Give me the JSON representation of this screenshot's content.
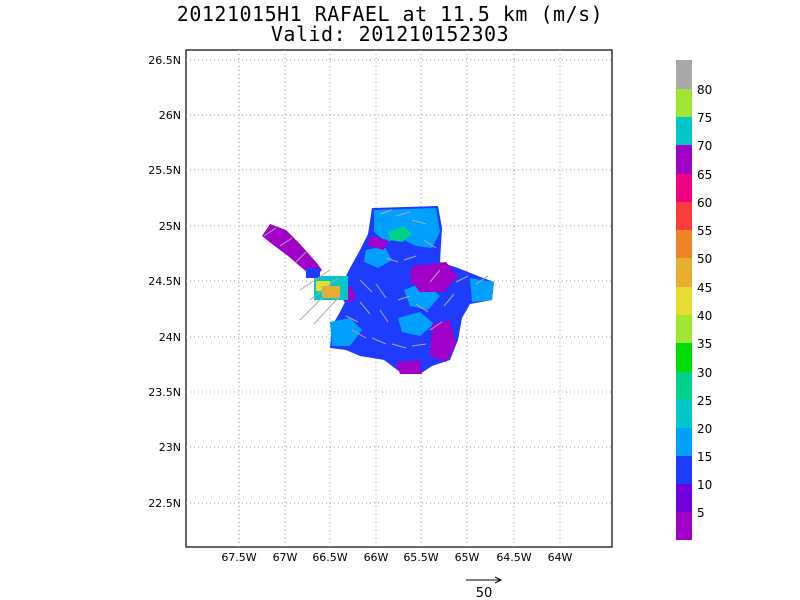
{
  "title_line1": "20121015H1 RAFAEL at 11.5 km (m/s)",
  "title_line2": "Valid: 201210152303",
  "lat_labels": [
    "26.5N",
    "26N",
    "25.5N",
    "25N",
    "24.5N",
    "24N",
    "23.5N",
    "23N",
    "22.5N"
  ],
  "lon_labels": [
    "67.5W",
    "67W",
    "66.5W",
    "66W",
    "65.5W",
    "65W",
    "64.5W",
    "64W"
  ],
  "colorbar": {
    "labels": [
      "5",
      "10",
      "15",
      "20",
      "25",
      "30",
      "35",
      "40",
      "45",
      "50",
      "55",
      "60",
      "65",
      "70",
      "75",
      "80"
    ],
    "colors": [
      "#a000c8",
      "#6e00dc",
      "#1e3cff",
      "#00a0ff",
      "#00c8c8",
      "#00d28c",
      "#00dc00",
      "#a0e632",
      "#e6dc32",
      "#e6af2d",
      "#f08228",
      "#fa3c3c",
      "#f00082",
      "#a000c8",
      "#00c8c8",
      "#a0e632",
      "#aaaaaa"
    ]
  },
  "reference_vector_label": "50"
}
